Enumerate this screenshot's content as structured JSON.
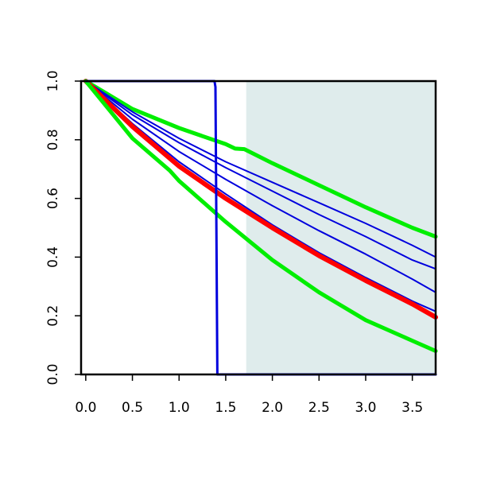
{
  "chart_data": {
    "type": "line",
    "title": "",
    "xlabel": "",
    "ylabel": "",
    "xlim": [
      -0.05,
      3.75
    ],
    "ylim": [
      0,
      1.0
    ],
    "x_ticks": [
      "0.0",
      "0.5",
      "1.0",
      "1.5",
      "2.0",
      "2.5",
      "3.0",
      "3.5"
    ],
    "y_ticks": [
      "0.0",
      "0.2",
      "0.4",
      "0.6",
      "0.8",
      "1.0"
    ],
    "shaded_region": {
      "x_from": 1.72,
      "x_to": 3.75,
      "color": "#dfecec"
    },
    "colors": {
      "red": "#ff0000",
      "green": "#00ee00",
      "blue": "#0000dd"
    },
    "series": [
      {
        "color": "green",
        "width": 5,
        "x": [
          0,
          0.5,
          1.0,
          1.5,
          1.6,
          1.7,
          2.0,
          2.5,
          3.0,
          3.5,
          3.75
        ],
        "y": [
          1.0,
          0.905,
          0.84,
          0.785,
          0.77,
          0.768,
          0.72,
          0.645,
          0.57,
          0.5,
          0.47
        ]
      },
      {
        "color": "blue",
        "width": 2,
        "x": [
          0,
          0.5,
          1.0,
          1.5,
          2.0,
          2.5,
          3.0,
          3.5,
          3.75
        ],
        "y": [
          1.0,
          0.895,
          0.805,
          0.725,
          0.655,
          0.585,
          0.515,
          0.44,
          0.4
        ]
      },
      {
        "color": "blue",
        "width": 2,
        "x": [
          0,
          0.5,
          1.0,
          1.5,
          2.0,
          2.5,
          3.0,
          3.5,
          3.75
        ],
        "y": [
          1.0,
          0.885,
          0.79,
          0.705,
          0.625,
          0.545,
          0.47,
          0.39,
          0.36
        ]
      },
      {
        "color": "blue",
        "width": 2,
        "x": [
          0,
          0.5,
          1.0,
          1.5,
          2.0,
          2.5,
          3.0,
          3.5,
          3.75
        ],
        "y": [
          1.0,
          0.87,
          0.76,
          0.665,
          0.575,
          0.49,
          0.41,
          0.325,
          0.28
        ]
      },
      {
        "color": "blue",
        "width": 2,
        "x": [
          0,
          0.5,
          1.0,
          1.5,
          2.0,
          2.5,
          3.0,
          3.5,
          3.75
        ],
        "y": [
          1.0,
          0.855,
          0.725,
          0.615,
          0.51,
          0.415,
          0.33,
          0.25,
          0.215
        ]
      },
      {
        "color": "red",
        "width": 6,
        "x": [
          0,
          0.5,
          1.0,
          1.5,
          2.0,
          2.5,
          3.0,
          3.5,
          3.75
        ],
        "y": [
          1.0,
          0.845,
          0.71,
          0.6,
          0.5,
          0.405,
          0.32,
          0.24,
          0.195
        ]
      },
      {
        "color": "green",
        "width": 5,
        "x": [
          0,
          0.5,
          0.9,
          1.0,
          1.5,
          2.0,
          2.5,
          3.0,
          3.5,
          3.75
        ],
        "y": [
          1.0,
          0.805,
          0.695,
          0.66,
          0.52,
          0.39,
          0.28,
          0.185,
          0.115,
          0.08
        ]
      },
      {
        "color": "blue",
        "width": 3,
        "x": [
          0,
          1.38,
          1.39,
          1.4,
          1.41,
          3.75
        ],
        "y": [
          1.0,
          1.0,
          0.98,
          0.5,
          0.0,
          0.0
        ]
      }
    ]
  }
}
